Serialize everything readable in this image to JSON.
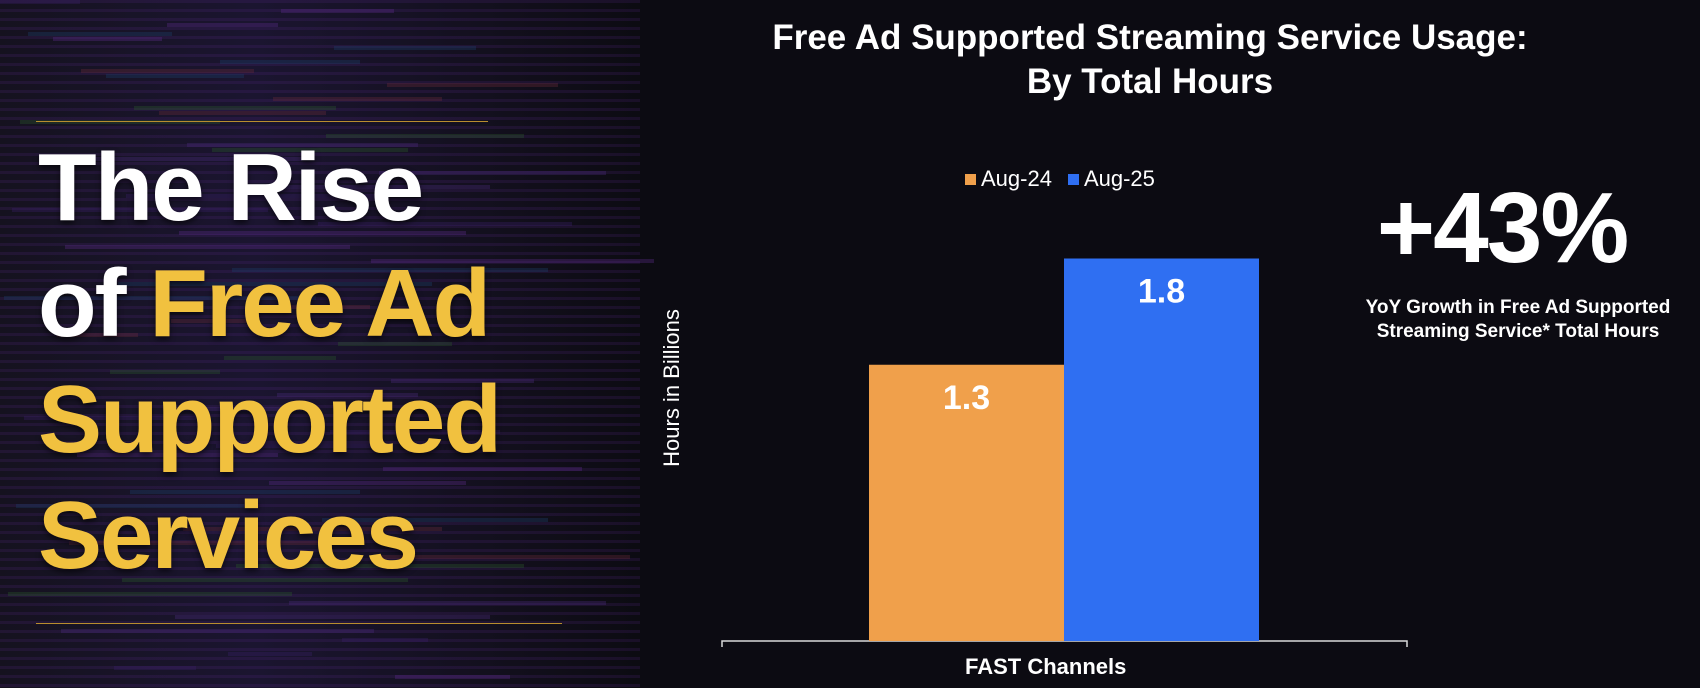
{
  "hero": {
    "line1": "The Rise",
    "line2_prefix": "of ",
    "line2_highlight": "Free Ad",
    "line3": "Supported",
    "line4": "Services"
  },
  "colors": {
    "gold": "#f1c13f",
    "series_aug24": "#f0a04b",
    "series_aug25": "#2f6ff2",
    "background": "#0c0b12"
  },
  "stat": {
    "value": "+43%",
    "desc_line1": "YoY Growth in Free Ad Supported",
    "desc_line2": "Streaming Service* Total Hours"
  },
  "chart_data": {
    "type": "bar",
    "title_line1": "Free Ad Supported Streaming Service Usage:",
    "title_line2": "By Total Hours",
    "ylabel": "Hours in Billions",
    "categories": [
      "FAST Channels"
    ],
    "series": [
      {
        "name": "Aug-24",
        "values": [
          1.3
        ]
      },
      {
        "name": "Aug-25",
        "values": [
          1.8
        ]
      }
    ],
    "ylim": [
      0,
      2
    ],
    "grid": false,
    "legend_position": "top"
  }
}
